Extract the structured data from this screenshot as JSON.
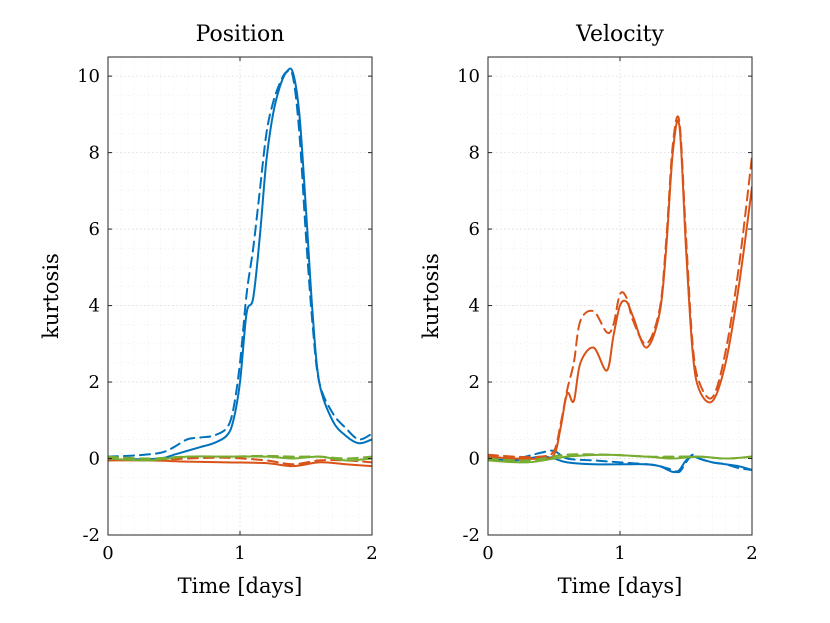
{
  "chart_data": [
    {
      "type": "line",
      "title": "Position",
      "xlabel": "Time [days]",
      "ylabel": "kurtosis",
      "xlim": [
        0,
        2
      ],
      "ylim": [
        -2,
        10.5
      ],
      "xticks": [
        "0",
        "1",
        "2"
      ],
      "yticks": [
        "-2",
        "0",
        "2",
        "4",
        "6",
        "8",
        "10"
      ],
      "grid": "on (major and minor, dotted)",
      "series": [
        {
          "color": "#0072BD",
          "style": "solid",
          "x": [
            0,
            0.2,
            0.4,
            0.5,
            0.6,
            0.7,
            0.8,
            0.9,
            0.95,
            1.0,
            1.05,
            1.1,
            1.15,
            1.2,
            1.25,
            1.3,
            1.35,
            1.4,
            1.45,
            1.5,
            1.55,
            1.6,
            1.7,
            1.8,
            1.9,
            2.0
          ],
          "y": [
            -0.05,
            -0.02,
            0.0,
            0.1,
            0.2,
            0.3,
            0.4,
            0.6,
            1.0,
            2.0,
            3.8,
            4.2,
            5.8,
            7.8,
            9.0,
            9.7,
            10.1,
            10.1,
            9.0,
            6.5,
            3.8,
            2.0,
            1.0,
            0.6,
            0.4,
            0.5
          ]
        },
        {
          "color": "#0072BD",
          "style": "dashed",
          "x": [
            0,
            0.2,
            0.4,
            0.5,
            0.6,
            0.7,
            0.8,
            0.9,
            0.95,
            1.0,
            1.05,
            1.1,
            1.15,
            1.2,
            1.25,
            1.3,
            1.35,
            1.4,
            1.45,
            1.5,
            1.55,
            1.6,
            1.7,
            1.8,
            1.9,
            2.0
          ],
          "y": [
            0.05,
            0.08,
            0.15,
            0.3,
            0.5,
            0.55,
            0.6,
            0.8,
            1.3,
            2.5,
            4.3,
            5.5,
            7.0,
            8.5,
            9.3,
            9.8,
            10.1,
            10.0,
            8.5,
            5.8,
            3.5,
            2.0,
            1.2,
            0.8,
            0.5,
            0.65
          ]
        },
        {
          "color": "#D95319",
          "style": "solid",
          "x": [
            0,
            0.3,
            0.6,
            0.9,
            1.2,
            1.4,
            1.6,
            1.8,
            2.0
          ],
          "y": [
            -0.05,
            -0.05,
            -0.08,
            -0.1,
            -0.12,
            -0.2,
            -0.1,
            -0.15,
            -0.2
          ]
        },
        {
          "color": "#D95319",
          "style": "dashed",
          "x": [
            0,
            0.3,
            0.6,
            0.9,
            1.2,
            1.4,
            1.6,
            1.8,
            2.0
          ],
          "y": [
            0.0,
            -0.05,
            0.0,
            0.02,
            -0.05,
            -0.15,
            -0.05,
            -0.05,
            -0.1
          ]
        },
        {
          "color": "#77AC30",
          "style": "solid",
          "x": [
            0,
            0.3,
            0.6,
            0.9,
            1.2,
            1.4,
            1.6,
            1.8,
            2.0
          ],
          "y": [
            0.0,
            -0.05,
            0.05,
            0.05,
            0.05,
            0.0,
            0.05,
            -0.05,
            0.0
          ]
        },
        {
          "color": "#77AC30",
          "style": "dashed",
          "x": [
            0,
            0.3,
            0.6,
            0.9,
            1.2,
            1.4,
            1.6,
            1.8,
            2.0
          ],
          "y": [
            0.05,
            0.0,
            0.05,
            0.05,
            0.07,
            0.05,
            0.05,
            0.0,
            0.05
          ]
        }
      ]
    },
    {
      "type": "line",
      "title": "Velocity",
      "xlabel": "Time [days]",
      "ylabel": "kurtosis",
      "xlim": [
        0,
        2
      ],
      "ylim": [
        -2,
        10.5
      ],
      "xticks": [
        "0",
        "1",
        "2"
      ],
      "yticks": [
        "-2",
        "0",
        "2",
        "4",
        "6",
        "8",
        "10"
      ],
      "grid": "on (major and minor, dotted)",
      "series": [
        {
          "color": "#0072BD",
          "style": "solid",
          "x": [
            0,
            0.2,
            0.4,
            0.5,
            0.6,
            0.8,
            1.0,
            1.2,
            1.3,
            1.4,
            1.45,
            1.5,
            1.55,
            1.6,
            1.7,
            1.8,
            1.9,
            2.0
          ],
          "y": [
            0.0,
            -0.05,
            0.05,
            0.0,
            -0.1,
            -0.15,
            -0.15,
            -0.15,
            -0.2,
            -0.35,
            -0.3,
            -0.05,
            0.05,
            0.0,
            -0.1,
            -0.15,
            -0.2,
            -0.3
          ]
        },
        {
          "color": "#0072BD",
          "style": "dashed",
          "x": [
            0,
            0.2,
            0.4,
            0.5,
            0.6,
            0.8,
            1.0,
            1.2,
            1.3,
            1.4,
            1.45,
            1.5,
            1.55,
            1.6,
            1.7,
            1.8,
            1.9,
            2.0
          ],
          "y": [
            0.05,
            0.0,
            0.15,
            0.2,
            0.0,
            -0.05,
            -0.1,
            -0.15,
            -0.2,
            -0.3,
            -0.35,
            -0.1,
            0.1,
            0.0,
            -0.1,
            -0.15,
            -0.25,
            -0.3
          ]
        },
        {
          "color": "#D95319",
          "style": "solid",
          "x": [
            0,
            0.2,
            0.4,
            0.5,
            0.55,
            0.6,
            0.65,
            0.7,
            0.8,
            0.9,
            0.95,
            1.0,
            1.05,
            1.1,
            1.2,
            1.3,
            1.35,
            1.4,
            1.45,
            1.5,
            1.55,
            1.6,
            1.7,
            1.8,
            1.9,
            2.0
          ],
          "y": [
            0.05,
            0.0,
            0.0,
            0.1,
            0.8,
            1.7,
            1.5,
            2.5,
            2.9,
            2.3,
            3.2,
            4.0,
            4.1,
            3.7,
            2.9,
            3.8,
            5.5,
            8.0,
            8.7,
            5.5,
            2.8,
            1.8,
            1.5,
            2.5,
            4.5,
            7.1
          ]
        },
        {
          "color": "#D95319",
          "style": "dashed",
          "x": [
            0,
            0.2,
            0.4,
            0.5,
            0.55,
            0.6,
            0.65,
            0.7,
            0.8,
            0.9,
            0.95,
            1.0,
            1.05,
            1.1,
            1.2,
            1.3,
            1.35,
            1.4,
            1.45,
            1.5,
            1.55,
            1.6,
            1.7,
            1.8,
            1.9,
            2.0
          ],
          "y": [
            0.1,
            0.05,
            0.05,
            0.2,
            0.9,
            1.8,
            2.5,
            3.6,
            3.85,
            3.3,
            3.5,
            4.3,
            4.2,
            3.6,
            3.0,
            3.9,
            5.7,
            8.2,
            8.8,
            5.8,
            3.0,
            2.0,
            1.6,
            2.8,
            5.0,
            7.9
          ]
        },
        {
          "color": "#77AC30",
          "style": "solid",
          "x": [
            0,
            0.3,
            0.6,
            0.9,
            1.2,
            1.4,
            1.6,
            1.8,
            2.0
          ],
          "y": [
            -0.05,
            -0.1,
            0.05,
            0.1,
            0.05,
            0.0,
            0.05,
            0.0,
            0.05
          ]
        },
        {
          "color": "#77AC30",
          "style": "dashed",
          "x": [
            0,
            0.3,
            0.6,
            0.9,
            1.2,
            1.4,
            1.6,
            1.8,
            2.0
          ],
          "y": [
            0.0,
            -0.05,
            0.1,
            0.1,
            0.05,
            0.05,
            0.05,
            0.0,
            0.05
          ]
        }
      ]
    }
  ]
}
